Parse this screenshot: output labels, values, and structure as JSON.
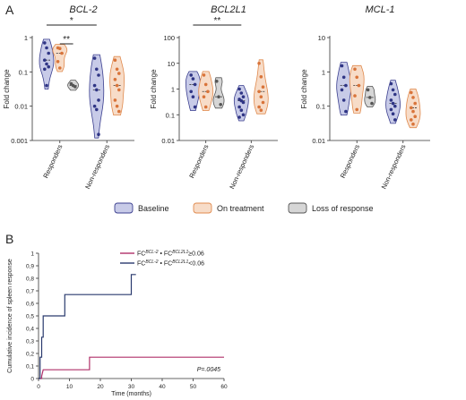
{
  "chart_data": [
    {
      "panel": "A",
      "type": "violin",
      "panels": [
        {
          "title": "BCL-2",
          "ylabel": "Fold change",
          "yscale": "log",
          "ylim": [
            0.001,
            1
          ],
          "yticks": [
            "0.001",
            "0.01",
            "0.1",
            "1"
          ],
          "categories": [
            "Responders",
            "Non-responders"
          ],
          "groups": [
            {
              "category": "Responders",
              "series": "Baseline",
              "values": [
                0.7,
                0.5,
                0.35,
                0.22,
                0.17,
                0.14,
                0.12,
                0.04
              ]
            },
            {
              "category": "Responders",
              "series": "On treatment",
              "values": [
                0.5,
                0.48,
                0.35,
                0.2,
                0.13
              ]
            },
            {
              "category": "Responders",
              "series": "Loss of response",
              "values": [
                0.045,
                0.04,
                0.037
              ]
            },
            {
              "category": "Non-responders",
              "series": "Baseline",
              "values": [
                0.25,
                0.12,
                0.08,
                0.04,
                0.03,
                0.015,
                0.01,
                0.008,
                0.0015
              ]
            },
            {
              "category": "Non-responders",
              "series": "On treatment",
              "values": [
                0.22,
                0.12,
                0.09,
                0.06,
                0.04,
                0.03,
                0.015,
                0.01,
                0.007
              ]
            }
          ],
          "brackets": [
            {
              "from": "Responders|Baseline",
              "to": "Non-responders|Baseline",
              "label": "*"
            },
            {
              "from": "Responders|On treatment",
              "to": "Responders|Loss of response",
              "label": "**"
            }
          ]
        },
        {
          "title": "BCL2L1",
          "ylabel": "Fold change",
          "yscale": "log",
          "ylim": [
            0.01,
            100
          ],
          "yticks": [
            "0.01",
            "0.1",
            "1",
            "10",
            "100"
          ],
          "categories": [
            "Responders",
            "Non-responders"
          ],
          "groups": [
            {
              "category": "Responders",
              "series": "Baseline",
              "values": [
                3.5,
                2.5,
                1.5,
                0.8,
                0.5,
                0.2
              ]
            },
            {
              "category": "Responders",
              "series": "On treatment",
              "values": [
                3.5,
                1.5,
                0.8,
                0.5,
                0.2
              ]
            },
            {
              "category": "Responders",
              "series": "Loss of response",
              "values": [
                2.0,
                0.5,
                0.25
              ]
            },
            {
              "category": "Non-responders",
              "series": "Baseline",
              "values": [
                1.0,
                0.7,
                0.5,
                0.4,
                0.35,
                0.3,
                0.2,
                0.15,
                0.1,
                0.08
              ]
            },
            {
              "category": "Non-responders",
              "series": "On treatment",
              "values": [
                10.0,
                3.0,
                1.2,
                0.8,
                0.5,
                0.3,
                0.2,
                0.15
              ]
            }
          ],
          "brackets": [
            {
              "from": "Responders|Baseline",
              "to": "Non-responders|Baseline",
              "label": "**"
            }
          ]
        },
        {
          "title": "MCL-1",
          "ylabel": "Fold change",
          "yscale": "log",
          "ylim": [
            0.01,
            10
          ],
          "yticks": [
            "0.01",
            "0.1",
            "1",
            "10"
          ],
          "categories": [
            "Responders",
            "Non-responders"
          ],
          "groups": [
            {
              "category": "Responders",
              "series": "Baseline",
              "values": [
                1.5,
                0.7,
                0.4,
                0.3,
                0.15,
                0.07
              ]
            },
            {
              "category": "Responders",
              "series": "On treatment",
              "values": [
                1.2,
                0.7,
                0.4,
                0.2,
                0.08
              ]
            },
            {
              "category": "Responders",
              "series": "Loss of response",
              "values": [
                0.3,
                0.18,
                0.12
              ]
            },
            {
              "category": "Non-responders",
              "series": "Baseline",
              "values": [
                0.45,
                0.3,
                0.22,
                0.15,
                0.12,
                0.1,
                0.08,
                0.06,
                0.04
              ]
            },
            {
              "category": "Non-responders",
              "series": "On treatment",
              "values": [
                0.25,
                0.18,
                0.12,
                0.09,
                0.07,
                0.05,
                0.04,
                0.03
              ]
            }
          ],
          "brackets": []
        }
      ],
      "legend": [
        {
          "name": "Baseline",
          "fill": "#c8cbe8",
          "stroke": "#3b3f8f",
          "dot": "#2f3585"
        },
        {
          "name": "On treatment",
          "fill": "#f7dcc8",
          "stroke": "#e08a4e",
          "dot": "#d9743a"
        },
        {
          "name": "Loss of response",
          "fill": "#d6d6d6",
          "stroke": "#555555",
          "dot": "#555555"
        }
      ],
      "legend_position": "bottom"
    },
    {
      "panel": "B",
      "type": "step",
      "ylabel": "Cumulative incidence of spleen response",
      "xlabel": "Time (months)",
      "xlim": [
        0,
        60
      ],
      "ylim": [
        0,
        1
      ],
      "xticks": [
        "0",
        "10",
        "20",
        "30",
        "40",
        "50",
        "60"
      ],
      "yticks": [
        "0",
        "0,1",
        "0,2",
        "0,3",
        "0,4",
        "0,5",
        "0,6",
        "0,7",
        "0,8",
        "0,9",
        "1"
      ],
      "annotation": "P=.0045",
      "series": [
        {
          "legend_parts": [
            "FC",
            "BCL-2",
            " • FC",
            "BCL2L1",
            "≥0.06"
          ],
          "color": "#b0306a",
          "points": [
            [
              0,
              0
            ],
            [
              1,
              0.0
            ],
            [
              1,
              0.02
            ],
            [
              1.5,
              0.07
            ],
            [
              16.5,
              0.07
            ],
            [
              16.5,
              0.17
            ],
            [
              60,
              0.17
            ]
          ]
        },
        {
          "legend_parts": [
            "FC",
            "BCL-2",
            " • FC",
            "BCL2L1",
            "<0.06"
          ],
          "color": "#2a3a6e",
          "points": [
            [
              0,
              0
            ],
            [
              0.5,
              0
            ],
            [
              0.5,
              0.17
            ],
            [
              1,
              0.17
            ],
            [
              1,
              0.33
            ],
            [
              1.5,
              0.33
            ],
            [
              1.5,
              0.5
            ],
            [
              8.5,
              0.5
            ],
            [
              8.5,
              0.67
            ],
            [
              30,
              0.67
            ],
            [
              30,
              0.83
            ],
            [
              31.5,
              0.83
            ]
          ]
        }
      ]
    }
  ],
  "labels": {
    "panelA": "A",
    "panelB": "B"
  }
}
